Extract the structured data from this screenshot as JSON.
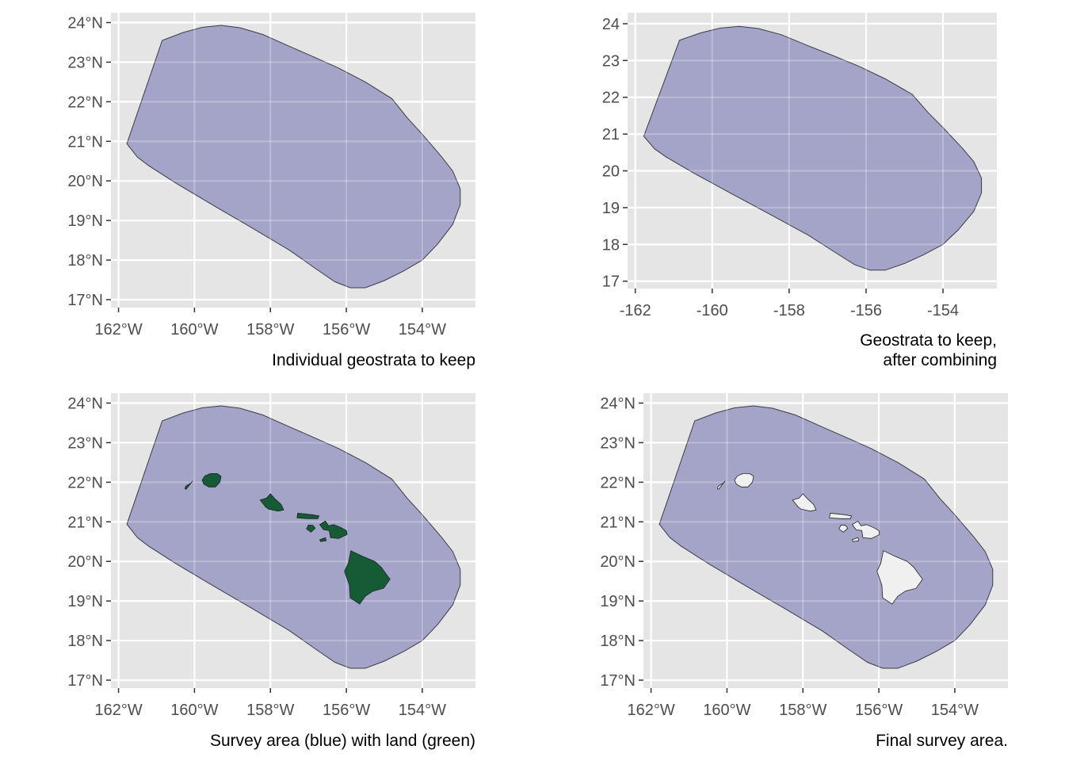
{
  "colors": {
    "panel_bg": "#e5e5e5",
    "grid": "#ffffff",
    "survey_fill": "#a0a0c6",
    "survey_stroke": "#3b3b4a",
    "land_green": "#155c36",
    "land_white": "#f0f0f0",
    "tick_text": "#4d4d4d"
  },
  "chart_data": [
    {
      "type": "map",
      "panel": "top-left",
      "caption": [
        "Individual geostrata to keep"
      ],
      "x_ticks": [
        -162,
        -160,
        -158,
        -156,
        -154
      ],
      "y_ticks": [
        17,
        18,
        19,
        20,
        21,
        22,
        23,
        24
      ],
      "x_tick_labels": [
        "162°W",
        "160°W",
        "158°W",
        "156°W",
        "154°W"
      ],
      "y_tick_labels": [
        "17°N",
        "18°N",
        "19°N",
        "20°N",
        "21°N",
        "22°N",
        "23°N",
        "24°N"
      ],
      "xlim": [
        -162.2,
        -152.6
      ],
      "ylim": [
        16.8,
        24.25
      ],
      "show_survey": true,
      "land": "none"
    },
    {
      "type": "map",
      "panel": "top-right",
      "caption": [
        "Geostrata to keep,",
        "after combining"
      ],
      "x_ticks": [
        -162,
        -160,
        -158,
        -156,
        -154
      ],
      "y_ticks": [
        17,
        18,
        19,
        20,
        21,
        22,
        23,
        24
      ],
      "x_tick_labels": [
        "-162",
        "-160",
        "-158",
        "-156",
        "-154"
      ],
      "y_tick_labels": [
        "17",
        "18",
        "19",
        "20",
        "21",
        "22",
        "23",
        "24"
      ],
      "xlim": [
        -162.2,
        -152.6
      ],
      "ylim": [
        16.8,
        24.3
      ],
      "show_survey": true,
      "land": "none"
    },
    {
      "type": "map",
      "panel": "bottom-left",
      "caption": [
        "Survey area (blue) with land (green)"
      ],
      "x_ticks": [
        -162,
        -160,
        -158,
        -156,
        -154
      ],
      "y_ticks": [
        17,
        18,
        19,
        20,
        21,
        22,
        23,
        24
      ],
      "x_tick_labels": [
        "162°W",
        "160°W",
        "158°W",
        "156°W",
        "154°W"
      ],
      "y_tick_labels": [
        "17°N",
        "18°N",
        "19°N",
        "20°N",
        "21°N",
        "22°N",
        "23°N",
        "24°N"
      ],
      "xlim": [
        -162.2,
        -152.6
      ],
      "ylim": [
        16.8,
        24.25
      ],
      "show_survey": true,
      "land": "green"
    },
    {
      "type": "map",
      "panel": "bottom-right",
      "caption": [
        "Final survey area."
      ],
      "x_ticks": [
        -162,
        -160,
        -158,
        -156,
        -154
      ],
      "y_ticks": [
        17,
        18,
        19,
        20,
        21,
        22,
        23,
        24
      ],
      "x_tick_labels": [
        "162°W",
        "160°W",
        "158°W",
        "156°W",
        "154°W"
      ],
      "y_tick_labels": [
        "17°N",
        "18°N",
        "19°N",
        "20°N",
        "21°N",
        "22°N",
        "23°N",
        "24°N"
      ],
      "xlim": [
        -162.2,
        -152.6
      ],
      "ylim": [
        16.8,
        24.25
      ],
      "show_survey": true,
      "land": "white"
    }
  ],
  "survey_polygon": [
    [
      -161.78,
      20.94
    ],
    [
      -161.5,
      20.6
    ],
    [
      -161.2,
      20.38
    ],
    [
      -160.5,
      19.95
    ],
    [
      -159.5,
      19.38
    ],
    [
      -158.5,
      18.82
    ],
    [
      -157.5,
      18.25
    ],
    [
      -156.8,
      17.78
    ],
    [
      -156.3,
      17.45
    ],
    [
      -155.9,
      17.3
    ],
    [
      -155.5,
      17.3
    ],
    [
      -155.0,
      17.48
    ],
    [
      -154.5,
      17.72
    ],
    [
      -154.0,
      18.0
    ],
    [
      -153.6,
      18.4
    ],
    [
      -153.2,
      18.9
    ],
    [
      -153.0,
      19.4
    ],
    [
      -153.0,
      19.8
    ],
    [
      -153.2,
      20.25
    ],
    [
      -153.5,
      20.62
    ],
    [
      -154.0,
      21.18
    ],
    [
      -154.4,
      21.6
    ],
    [
      -154.8,
      22.08
    ],
    [
      -155.5,
      22.5
    ],
    [
      -156.2,
      22.85
    ],
    [
      -156.9,
      23.15
    ],
    [
      -157.5,
      23.4
    ],
    [
      -158.2,
      23.7
    ],
    [
      -158.8,
      23.87
    ],
    [
      -159.3,
      23.93
    ],
    [
      -159.8,
      23.88
    ],
    [
      -160.3,
      23.75
    ],
    [
      -160.85,
      23.55
    ],
    [
      -161.78,
      20.94
    ]
  ],
  "islands": [
    {
      "name": "Niihau",
      "coords": [
        [
          -160.23,
          21.9
        ],
        [
          -160.08,
          21.99
        ],
        [
          -160.05,
          22.03
        ],
        [
          -160.1,
          21.97
        ],
        [
          -160.22,
          21.82
        ],
        [
          -160.25,
          21.84
        ],
        [
          -160.23,
          21.9
        ]
      ]
    },
    {
      "name": "Kauai",
      "coords": [
        [
          -159.8,
          22.05
        ],
        [
          -159.73,
          22.16
        ],
        [
          -159.58,
          22.22
        ],
        [
          -159.4,
          22.22
        ],
        [
          -159.3,
          22.15
        ],
        [
          -159.33,
          22.0
        ],
        [
          -159.45,
          21.88
        ],
        [
          -159.62,
          21.88
        ],
        [
          -159.75,
          21.95
        ],
        [
          -159.8,
          22.05
        ]
      ]
    },
    {
      "name": "Oahu",
      "coords": [
        [
          -158.27,
          21.55
        ],
        [
          -158.1,
          21.6
        ],
        [
          -158.0,
          21.71
        ],
        [
          -157.88,
          21.58
        ],
        [
          -157.72,
          21.44
        ],
        [
          -157.65,
          21.3
        ],
        [
          -157.8,
          21.27
        ],
        [
          -158.05,
          21.32
        ],
        [
          -158.13,
          21.38
        ],
        [
          -158.27,
          21.55
        ]
      ]
    },
    {
      "name": "Molokai",
      "coords": [
        [
          -157.3,
          21.1
        ],
        [
          -157.28,
          21.22
        ],
        [
          -157.1,
          21.2
        ],
        [
          -156.9,
          21.18
        ],
        [
          -156.72,
          21.15
        ],
        [
          -156.75,
          21.08
        ],
        [
          -157.0,
          21.08
        ],
        [
          -157.3,
          21.1
        ]
      ]
    },
    {
      "name": "Lanai",
      "coords": [
        [
          -157.05,
          20.82
        ],
        [
          -157.0,
          20.92
        ],
        [
          -156.88,
          20.91
        ],
        [
          -156.82,
          20.84
        ],
        [
          -156.93,
          20.74
        ],
        [
          -157.05,
          20.82
        ]
      ]
    },
    {
      "name": "Maui",
      "coords": [
        [
          -156.7,
          20.93
        ],
        [
          -156.55,
          21.02
        ],
        [
          -156.47,
          20.9
        ],
        [
          -156.33,
          20.93
        ],
        [
          -156.15,
          20.86
        ],
        [
          -156.0,
          20.78
        ],
        [
          -155.98,
          20.68
        ],
        [
          -156.2,
          20.58
        ],
        [
          -156.42,
          20.6
        ],
        [
          -156.45,
          20.78
        ],
        [
          -156.6,
          20.8
        ],
        [
          -156.7,
          20.93
        ]
      ]
    },
    {
      "name": "Kahoolawe",
      "coords": [
        [
          -156.7,
          20.55
        ],
        [
          -156.55,
          20.6
        ],
        [
          -156.53,
          20.52
        ],
        [
          -156.68,
          20.5
        ],
        [
          -156.7,
          20.55
        ]
      ]
    },
    {
      "name": "Hawaii",
      "coords": [
        [
          -155.88,
          20.27
        ],
        [
          -155.73,
          20.2
        ],
        [
          -155.55,
          20.12
        ],
        [
          -155.25,
          20.0
        ],
        [
          -155.08,
          19.85
        ],
        [
          -154.85,
          19.55
        ],
        [
          -155.02,
          19.32
        ],
        [
          -155.3,
          19.25
        ],
        [
          -155.5,
          19.12
        ],
        [
          -155.65,
          18.92
        ],
        [
          -155.9,
          19.08
        ],
        [
          -155.92,
          19.4
        ],
        [
          -156.05,
          19.75
        ],
        [
          -155.95,
          19.95
        ],
        [
          -155.88,
          20.27
        ]
      ]
    }
  ]
}
